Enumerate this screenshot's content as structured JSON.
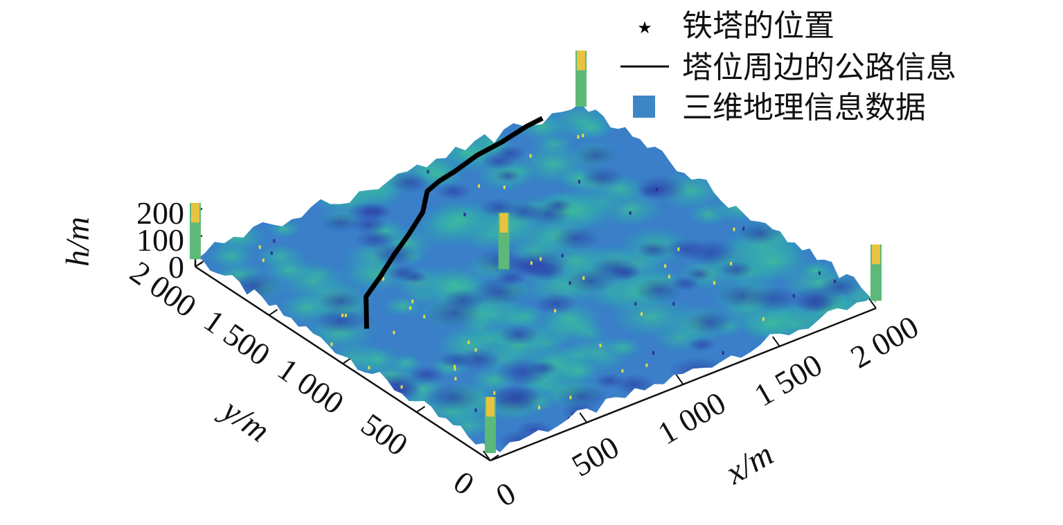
{
  "chart_data": {
    "type": "surface3d",
    "title": "",
    "legend": {
      "placement": "top-right",
      "entries": [
        {
          "label": "铁塔的位置",
          "marker": "star",
          "color": "#000000"
        },
        {
          "label": "塔位周边的公路信息",
          "marker": "line",
          "color": "#000000"
        },
        {
          "label": "三维地理信息数据",
          "marker": "square",
          "color": "#3d86c6"
        }
      ]
    },
    "axes": {
      "x": {
        "label": "x/m",
        "range": [
          0,
          2000
        ],
        "ticks": [
          {
            "value": 0,
            "label": "0"
          },
          {
            "value": 500,
            "label": "500"
          },
          {
            "value": 1000,
            "label": "1 000"
          },
          {
            "value": 1500,
            "label": "1 500"
          },
          {
            "value": 2000,
            "label": "2 000"
          }
        ]
      },
      "y": {
        "label": "y/m",
        "range": [
          0,
          2000
        ],
        "ticks": [
          {
            "value": 0,
            "label": "0"
          },
          {
            "value": 500,
            "label": "500"
          },
          {
            "value": 1000,
            "label": "1 000"
          },
          {
            "value": 1500,
            "label": "1 500"
          },
          {
            "value": 2000,
            "label": "2 000"
          }
        ]
      },
      "h": {
        "label": "h/m",
        "range": [
          0,
          200
        ],
        "ticks": [
          {
            "value": 0,
            "label": "0"
          },
          {
            "value": 100,
            "label": "100"
          },
          {
            "value": 200,
            "label": "200"
          }
        ]
      }
    },
    "colormap": [
      "#2b3fa8",
      "#3579c9",
      "#2aa0c7",
      "#2fbd9e",
      "#9acb4a",
      "#f0c23a",
      "#f7e238"
    ],
    "series": [
      {
        "name": "铁塔的位置",
        "type": "scatter3d",
        "points": [
          [
            0,
            0,
            200
          ],
          [
            0,
            2000,
            200
          ],
          [
            2000,
            0,
            200
          ],
          [
            2000,
            2000,
            200
          ],
          [
            950,
            1150,
            200
          ]
        ]
      },
      {
        "name": "塔位周边的公路信息",
        "type": "line3d",
        "points": [
          [
            200,
            1100,
            40
          ],
          [
            350,
            1300,
            45
          ],
          [
            500,
            1400,
            40
          ],
          [
            650,
            1500,
            45
          ],
          [
            800,
            1600,
            40
          ],
          [
            950,
            1700,
            45
          ],
          [
            1050,
            1800,
            60
          ],
          [
            1150,
            1850,
            50
          ],
          [
            1250,
            1880,
            45
          ],
          [
            1400,
            1920,
            50
          ],
          [
            1550,
            1950,
            45
          ],
          [
            1700,
            1980,
            50
          ],
          [
            1800,
            2000,
            45
          ]
        ]
      },
      {
        "name": "三维地理信息数据",
        "type": "surface",
        "grid_extent": [
          0,
          2000
        ],
        "h_range": [
          0,
          120
        ]
      }
    ]
  }
}
